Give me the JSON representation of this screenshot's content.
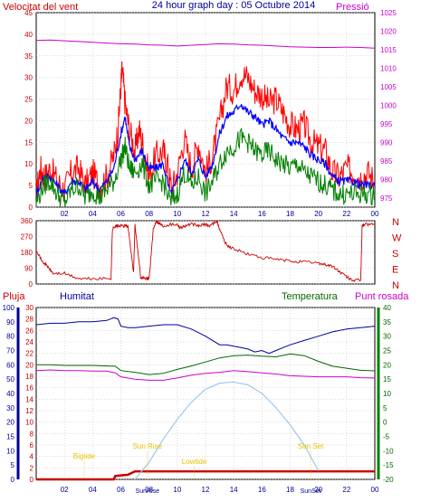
{
  "header": {
    "wind_label": "Velocitat del vent",
    "title": "24 hour graph day : 05 Octubre 2014",
    "pressure_label": "Pressió"
  },
  "bottom_header": {
    "rain": "Pluja",
    "humidity": "Humitat",
    "temperature": "Temperatura",
    "dewpoint": "Punt rosada"
  },
  "colors": {
    "wind_gust": "#ff0000",
    "wind_speed": "#008000",
    "wind_avg": "#0000ff",
    "pressure": "#cc00cc",
    "direction": "#cc0000",
    "rain": "#cc0000",
    "humidity": "#000099",
    "temperature": "#006600",
    "dewpoint": "#cc00cc",
    "sun_curve": "#9fc8e8",
    "sun_event": "#e6c200",
    "grid": "#bbbbbb"
  },
  "chart_data": [
    {
      "type": "line",
      "name": "wind-pressure",
      "x_ticks": [
        "02",
        "04",
        "06",
        "08",
        "10",
        "12",
        "14",
        "16",
        "18",
        "20",
        "22",
        "00"
      ],
      "xlim": [
        0,
        24
      ],
      "left_axis": {
        "ticks": [
          0,
          5,
          10,
          15,
          20,
          25,
          30,
          35,
          40,
          45
        ],
        "ylim": [
          0,
          45
        ]
      },
      "right_axis": {
        "ticks": [
          975,
          980,
          985,
          990,
          995,
          1000,
          1005,
          1010,
          1015,
          1020,
          1025
        ],
        "ylim": [
          972.5,
          1025
        ]
      },
      "series": [
        {
          "key": "wind_gust",
          "hours": [
            0,
            0.3,
            0.6,
            1,
            1.5,
            2,
            2.5,
            3,
            3.5,
            4,
            4.5,
            5,
            5.5,
            5.8,
            6.0,
            6.1,
            6.3,
            6.6,
            7,
            7.3,
            7.6,
            8,
            8.5,
            9,
            9.3,
            9.6,
            10,
            10.5,
            11,
            11.5,
            12,
            12.5,
            13,
            13.5,
            14,
            14.5,
            15,
            15.5,
            16,
            16.5,
            17,
            17.5,
            18,
            18.5,
            19,
            19.5,
            20,
            20.5,
            21,
            21.5,
            22,
            22.5,
            23,
            23.5,
            24
          ],
          "values": [
            3,
            9,
            7,
            9,
            6,
            4,
            8,
            9,
            5,
            8,
            5,
            7,
            12,
            18,
            28,
            32,
            24,
            18,
            13,
            18,
            14,
            7,
            12,
            13,
            10,
            4,
            8,
            16,
            9,
            15,
            8,
            12,
            20,
            28,
            27,
            31,
            30,
            27,
            26,
            24,
            25,
            22,
            19,
            18,
            19,
            15,
            14,
            13,
            8,
            7,
            9,
            8,
            7,
            8,
            6
          ]
        },
        {
          "key": "wind_avg",
          "hours": [
            0,
            0.5,
            1,
            1.5,
            2,
            2.5,
            3,
            3.5,
            4,
            4.5,
            5,
            5.5,
            6,
            6.3,
            6.6,
            7,
            7.5,
            8,
            8.5,
            9,
            9.5,
            10,
            10.5,
            11,
            11.5,
            12,
            12.5,
            13,
            13.5,
            14,
            14.5,
            15,
            15.5,
            16,
            16.5,
            17,
            17.5,
            18,
            18.5,
            19,
            19.5,
            20,
            20.5,
            21,
            21.5,
            22,
            22.5,
            23,
            23.5,
            24
          ],
          "values": [
            3,
            7,
            7,
            5,
            3,
            6,
            6,
            4,
            6,
            4,
            6,
            9,
            17,
            21,
            14,
            11,
            13,
            9,
            9,
            10,
            3,
            6,
            11,
            8,
            11,
            7,
            10,
            17,
            21,
            22,
            24,
            22,
            21,
            19,
            20,
            18,
            16,
            15,
            15,
            14,
            12,
            11,
            10,
            7,
            6,
            6,
            6,
            5,
            5,
            5
          ]
        },
        {
          "key": "wind_speed",
          "hours": [
            0,
            0.5,
            1,
            1.5,
            2,
            2.5,
            3,
            3.5,
            4,
            4.5,
            5,
            5.5,
            6,
            6.3,
            6.6,
            7,
            7.5,
            8,
            8.5,
            9,
            9.5,
            10,
            10.5,
            11,
            11.5,
            12,
            12.5,
            13,
            13.5,
            14,
            14.5,
            15,
            15.5,
            16,
            16.5,
            17,
            17.5,
            18,
            18.5,
            19,
            19.5,
            20,
            20.5,
            21,
            21.5,
            22,
            22.5,
            23,
            23.5,
            24
          ],
          "values": [
            1,
            5,
            6,
            3,
            1,
            4,
            5,
            2,
            4,
            2,
            4,
            6,
            11,
            14,
            9,
            8,
            10,
            5,
            6,
            6,
            1,
            3,
            8,
            5,
            7,
            3,
            6,
            10,
            13,
            14,
            16,
            15,
            13,
            12,
            13,
            11,
            10,
            9,
            10,
            8,
            7,
            6,
            5,
            4,
            3,
            3,
            3,
            3,
            3,
            3
          ]
        },
        {
          "key": "pressure",
          "hours": [
            0,
            1,
            2,
            3,
            4,
            5,
            6,
            7,
            8,
            9,
            10,
            11,
            12,
            13,
            14,
            15,
            16,
            17,
            18,
            19,
            20,
            21,
            22,
            23,
            24
          ],
          "values": [
            1017.5,
            1017.6,
            1017.4,
            1017.2,
            1017.0,
            1016.8,
            1016.6,
            1016.5,
            1016.3,
            1016.2,
            1016.0,
            1016.2,
            1016.4,
            1016.6,
            1016.5,
            1016.3,
            1016.2,
            1016.0,
            1015.8,
            1015.7,
            1015.6,
            1015.6,
            1015.7,
            1015.6,
            1015.4
          ]
        }
      ]
    },
    {
      "type": "line",
      "name": "wind-direction",
      "xlim": [
        0,
        24
      ],
      "ylim": [
        0,
        360
      ],
      "y_ticks": [
        0,
        90,
        180,
        270,
        360
      ],
      "cardinal_labels": [
        "N",
        "W",
        "S",
        "E",
        "N"
      ],
      "series": [
        {
          "key": "direction",
          "hours": [
            0,
            0.4,
            0.8,
            1.2,
            2,
            3,
            4,
            5.3,
            5.4,
            5.6,
            5.8,
            6.2,
            6.5,
            6.9,
            7,
            7.4,
            7.8,
            8,
            8.3,
            8.5,
            8.8,
            9,
            9.5,
            10,
            10.2,
            10.5,
            11,
            11.5,
            12,
            12.3,
            12.8,
            13,
            13.5,
            14,
            15,
            16,
            17,
            18,
            19,
            20,
            20.5,
            21,
            21.5,
            22,
            22.5,
            23,
            23.1,
            23.3,
            24
          ],
          "values": [
            200,
            130,
            100,
            60,
            60,
            30,
            30,
            30,
            310,
            330,
            330,
            330,
            330,
            60,
            340,
            40,
            30,
            30,
            310,
            360,
            340,
            330,
            340,
            340,
            320,
            330,
            340,
            330,
            340,
            330,
            360,
            310,
            220,
            200,
            170,
            150,
            140,
            130,
            125,
            120,
            110,
            100,
            70,
            40,
            20,
            20,
            330,
            340,
            340
          ]
        }
      ]
    },
    {
      "type": "line",
      "name": "temp-hum-rain",
      "x_ticks": [
        "02",
        "04",
        "06",
        "08",
        "10",
        "12",
        "14",
        "16",
        "18",
        "20",
        "22",
        "00"
      ],
      "xlim": [
        0,
        24
      ],
      "humidity_axis": {
        "ticks": [
          0,
          5,
          10,
          15,
          20,
          30,
          40,
          50,
          60,
          70,
          80,
          90,
          100
        ]
      },
      "rain_axis": {
        "ticks": [
          0,
          2,
          4,
          6,
          8,
          10,
          12,
          14,
          16,
          18,
          20,
          22,
          24,
          26,
          28,
          30
        ],
        "ylim": [
          0,
          30
        ]
      },
      "temp_axis": {
        "ticks": [
          -20,
          -15,
          -10,
          -5,
          0,
          5,
          10,
          15,
          20,
          25,
          30,
          35,
          40
        ],
        "ylim": [
          -20,
          40
        ]
      },
      "series": [
        {
          "key": "humidity",
          "hours": [
            0,
            1,
            2,
            3,
            4,
            5,
            5.5,
            5.8,
            6,
            6.5,
            7,
            8,
            9,
            10,
            11,
            12,
            12.5,
            13,
            13.5,
            14,
            14.5,
            15,
            15.5,
            16,
            16.5,
            17,
            17.5,
            18,
            19,
            20,
            21,
            22,
            23,
            24
          ],
          "values": [
            88,
            89,
            89,
            90,
            90,
            91,
            93,
            92,
            87,
            86,
            86,
            87,
            88,
            88,
            85,
            80,
            77,
            74,
            74,
            73,
            72,
            71,
            69,
            70,
            68,
            70,
            72,
            74,
            77,
            80,
            83,
            85,
            86,
            87
          ]
        },
        {
          "key": "rain",
          "hours": [
            0,
            5.5,
            5.6,
            6.5,
            7,
            8,
            9,
            10,
            24
          ],
          "values": [
            0,
            0,
            0.6,
            0.8,
            1.4,
            1.4,
            1.4,
            1.4,
            1.4
          ]
        },
        {
          "key": "temperature",
          "hours": [
            0,
            1,
            2,
            3,
            4,
            5,
            5.6,
            6,
            7,
            8,
            9,
            10,
            11,
            12,
            13,
            14,
            15,
            16,
            17,
            18,
            19,
            20,
            21,
            22,
            23,
            24
          ],
          "values": [
            20,
            20,
            19.8,
            19.8,
            19.8,
            19.6,
            19.5,
            18,
            17.4,
            16.6,
            17,
            18.4,
            19.6,
            21,
            22.4,
            23.2,
            23.4,
            23,
            22.8,
            23.8,
            23.2,
            21.2,
            19.5,
            18.8,
            18.1,
            17.9
          ]
        },
        {
          "key": "dewpoint",
          "hours": [
            0,
            1,
            2,
            3,
            4,
            5,
            5.6,
            6,
            7,
            8,
            9,
            10,
            11,
            12,
            13,
            14,
            15,
            16,
            17,
            18,
            19,
            20,
            21,
            22,
            23,
            24
          ],
          "values": [
            18,
            18.2,
            18,
            18,
            17.8,
            17.8,
            17.2,
            15.8,
            15,
            14.6,
            14.6,
            15.4,
            16.4,
            17,
            17.4,
            18,
            17.6,
            17.2,
            16.8,
            16.2,
            16,
            15.8,
            15.8,
            15.8,
            15.5,
            15.4
          ]
        },
        {
          "key": "sun_curve",
          "hours": [
            7,
            8,
            9,
            10,
            11,
            12,
            13,
            14,
            15,
            16,
            17,
            18,
            19,
            20
          ],
          "values": [
            -20,
            -14,
            -6,
            1,
            7,
            11.5,
            13.6,
            14,
            13,
            10,
            5,
            -1,
            -8,
            -17
          ]
        }
      ],
      "events": [
        {
          "label": "Sun Rise",
          "hour": 7.88,
          "event": "rise"
        },
        {
          "label": "Sun Set",
          "hour": 19.45,
          "event": "set"
        },
        {
          "label": "Lowtide",
          "hour": 11.2,
          "event": "tide"
        },
        {
          "label": "Bigtide",
          "hour": 3.4,
          "event": "tide"
        }
      ],
      "bottom_event_labels": [
        "SunRise",
        "SunSet"
      ]
    }
  ]
}
